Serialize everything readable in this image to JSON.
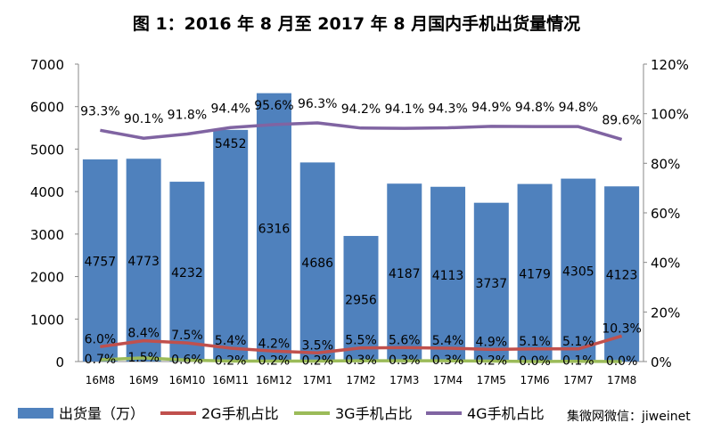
{
  "chart_data": {
    "type": "bar+line",
    "title": "图 1：2016 年 8 月至 2017 年 8 月国内手机出货量情况",
    "categories": [
      "16M8",
      "16M9",
      "16M10",
      "16M11",
      "16M12",
      "17M1",
      "17M2",
      "17M3",
      "17M4",
      "17M5",
      "17M6",
      "17M7",
      "17M8"
    ],
    "y_left": {
      "range": [
        0,
        7000
      ],
      "ticks": [
        "0",
        "1000",
        "2000",
        "3000",
        "4000",
        "5000",
        "6000",
        "7000"
      ]
    },
    "y_right": {
      "range": [
        0,
        120
      ],
      "ticks": [
        "0%",
        "20%",
        "40%",
        "60%",
        "80%",
        "100%",
        "120%"
      ]
    },
    "grid": false,
    "legend_position": "bottom",
    "series": [
      {
        "name": "出货量（万）",
        "type": "bar",
        "axis": "left",
        "color": "#4f81bd",
        "values": [
          4757,
          4773,
          4232,
          5452,
          6316,
          4686,
          2956,
          4187,
          4113,
          3737,
          4179,
          4305,
          4123
        ],
        "labels": [
          "4757",
          "4773",
          "4232",
          "5452",
          "6316",
          "4686",
          "2956",
          "4187",
          "4113",
          "3737",
          "4179",
          "4305",
          "4123"
        ]
      },
      {
        "name": "2G手机占比",
        "type": "line",
        "axis": "right",
        "color": "#c0504d",
        "values": [
          6.0,
          8.4,
          7.5,
          5.4,
          4.2,
          3.5,
          5.5,
          5.6,
          5.4,
          4.9,
          5.1,
          5.1,
          10.3
        ],
        "labels": [
          "6.0%",
          "8.4%",
          "7.5%",
          "5.4%",
          "4.2%",
          "3.5%",
          "5.5%",
          "5.6%",
          "5.4%",
          "4.9%",
          "5.1%",
          "5.1%",
          "10.3%"
        ]
      },
      {
        "name": "3G手机占比",
        "type": "line",
        "axis": "right",
        "color": "#9bbb59",
        "values": [
          0.7,
          1.5,
          0.6,
          0.2,
          0.2,
          0.2,
          0.3,
          0.3,
          0.3,
          0.2,
          0.0,
          0.1,
          0.0
        ],
        "labels": [
          "0.7%",
          "1.5%",
          "0.6%",
          "0.2%",
          "0.2%",
          "0.2%",
          "0.3%",
          "0.3%",
          "0.3%",
          "0.2%",
          "0.0%",
          "0.1%",
          "0.0%"
        ]
      },
      {
        "name": "4G手机占比",
        "type": "line",
        "axis": "right",
        "color": "#8064a2",
        "values": [
          93.3,
          90.1,
          91.8,
          94.4,
          95.6,
          96.3,
          94.2,
          94.1,
          94.3,
          94.9,
          94.8,
          94.8,
          89.6
        ],
        "labels": [
          "93.3%",
          "90.1%",
          "91.8%",
          "94.4%",
          "95.6%",
          "96.3%",
          "94.2%",
          "94.1%",
          "94.3%",
          "94.9%",
          "94.8%",
          "94.8%",
          "89.6%"
        ]
      }
    ]
  },
  "watermark": "集微网微信：jiweinet"
}
